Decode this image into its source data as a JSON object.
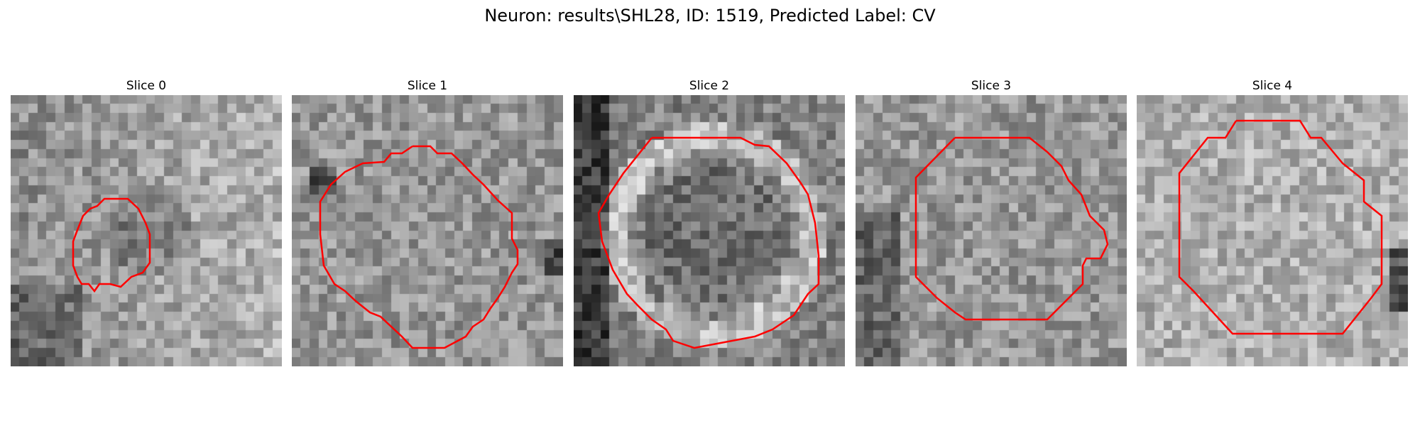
{
  "figure": {
    "title": "Neuron: results\\SHL28, ID: 1519, Predicted Label: CV"
  },
  "contour_color": "#ff0000",
  "panels": [
    {
      "title": "Slice 0",
      "seed": 11,
      "pattern": "dark-center-small"
    },
    {
      "title": "Slice 1",
      "seed": 23,
      "pattern": "uniform-gray"
    },
    {
      "title": "Slice 2",
      "seed": 37,
      "pattern": "ring-membrane"
    },
    {
      "title": "Slice 3",
      "seed": 41,
      "pattern": "speckled-gray"
    },
    {
      "title": "Slice 4",
      "seed": 53,
      "pattern": "light-gray"
    }
  ]
}
